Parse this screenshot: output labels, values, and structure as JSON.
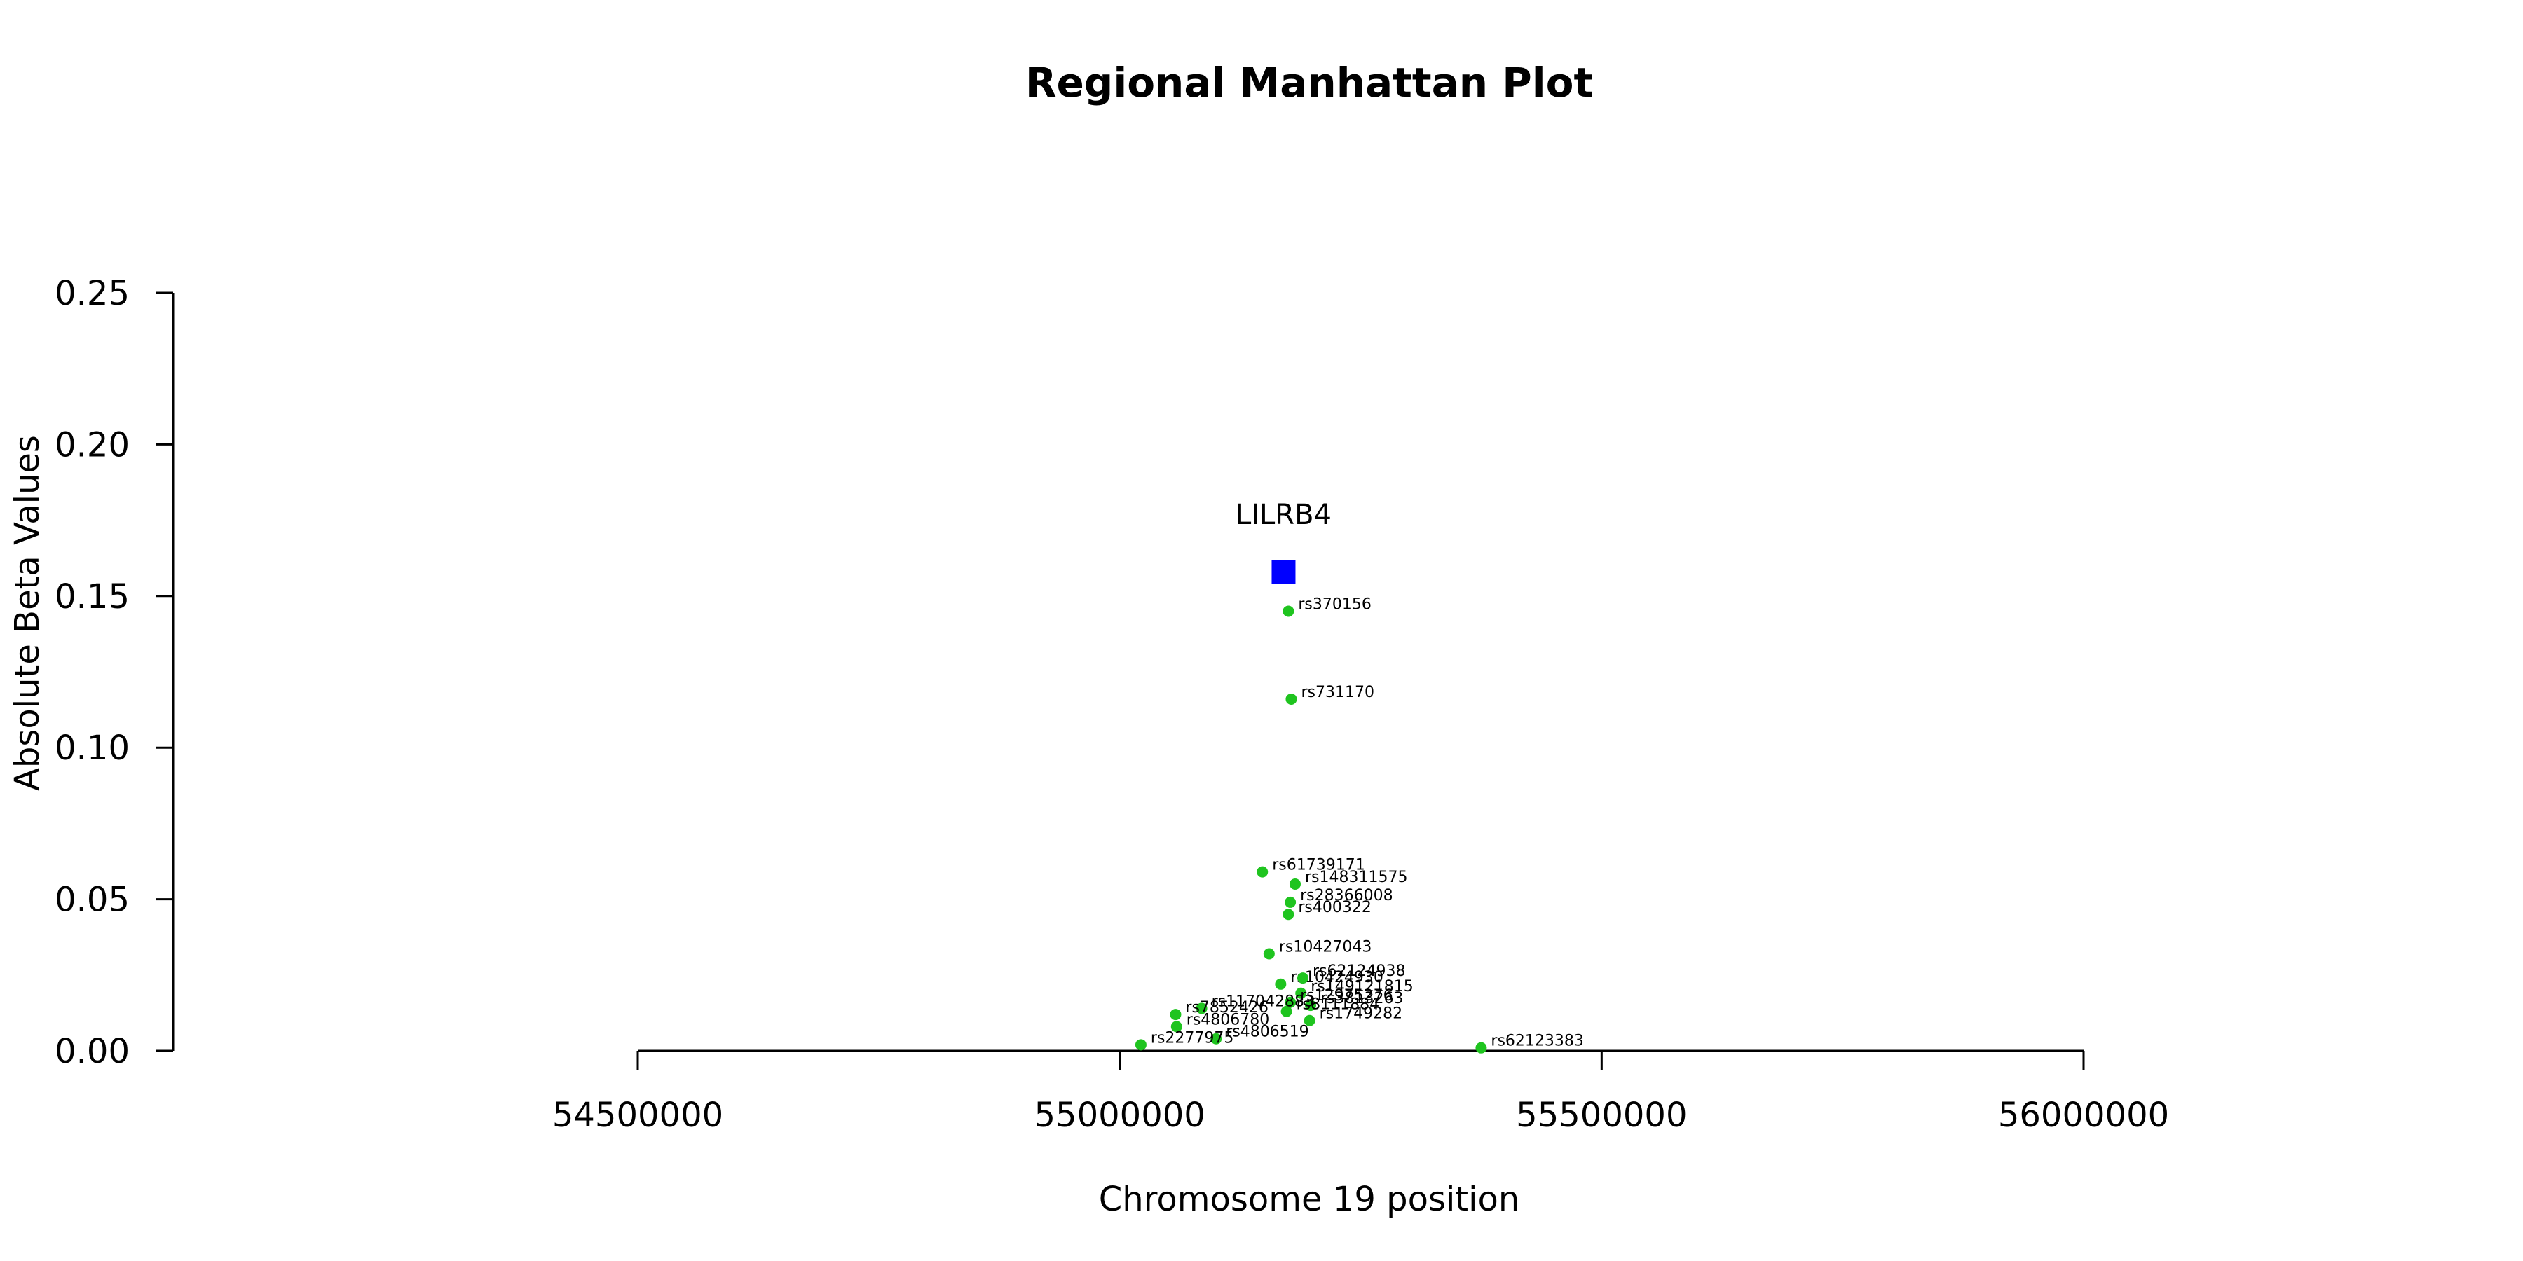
{
  "chart_data": {
    "type": "scatter",
    "title": "Regional Manhattan Plot",
    "xlabel": "Chromosome 19 position",
    "ylabel": "Absolute Beta Values",
    "xlim": [
      54000000,
      56200000
    ],
    "ylim": [
      0,
      0.25
    ],
    "x_ticks": [
      54500000,
      55000000,
      55500000,
      56000000
    ],
    "x_tick_labels": [
      "54500000",
      "55000000",
      "55500000",
      "56000000"
    ],
    "y_ticks": [
      0.0,
      0.05,
      0.1,
      0.15,
      0.2,
      0.25
    ],
    "y_tick_labels": [
      "0.00",
      "0.05",
      "0.10",
      "0.15",
      "0.20",
      "0.25"
    ],
    "grid": false,
    "colors": {
      "snp": "#1fc41f",
      "gene": "#0000ff",
      "axis": "#000000",
      "text": "#000000"
    },
    "gene": {
      "name": "LILRB4",
      "x": 55170000,
      "y": 0.158
    },
    "snps": [
      {
        "name": "rs370156",
        "x": 55175000,
        "y": 0.145
      },
      {
        "name": "rs731170",
        "x": 55178000,
        "y": 0.116
      },
      {
        "name": "rs61739171",
        "x": 55148000,
        "y": 0.059
      },
      {
        "name": "rs148311575",
        "x": 55182000,
        "y": 0.055
      },
      {
        "name": "rs28366008",
        "x": 55177000,
        "y": 0.049
      },
      {
        "name": "rs400322",
        "x": 55175000,
        "y": 0.045
      },
      {
        "name": "rs10427043",
        "x": 55155000,
        "y": 0.032
      },
      {
        "name": "rs10424930",
        "x": 55167000,
        "y": 0.022
      },
      {
        "name": "rs62124938",
        "x": 55190000,
        "y": 0.024
      },
      {
        "name": "rs149121815",
        "x": 55188000,
        "y": 0.019
      },
      {
        "name": "rs3813263",
        "x": 55198000,
        "y": 0.015
      },
      {
        "name": "rs12975276",
        "x": 55177000,
        "y": 0.016
      },
      {
        "name": "rs8111884",
        "x": 55173000,
        "y": 0.013
      },
      {
        "name": "rs1749282",
        "x": 55197000,
        "y": 0.01
      },
      {
        "name": "rs117042883",
        "x": 55085000,
        "y": 0.014
      },
      {
        "name": "rs7852426",
        "x": 55058000,
        "y": 0.012
      },
      {
        "name": "rs4806780",
        "x": 55059000,
        "y": 0.008
      },
      {
        "name": "rs4806519",
        "x": 55100000,
        "y": 0.004
      },
      {
        "name": "rs2277975",
        "x": 55022000,
        "y": 0.002
      },
      {
        "name": "rs62123383",
        "x": 55375000,
        "y": 0.001
      }
    ]
  }
}
